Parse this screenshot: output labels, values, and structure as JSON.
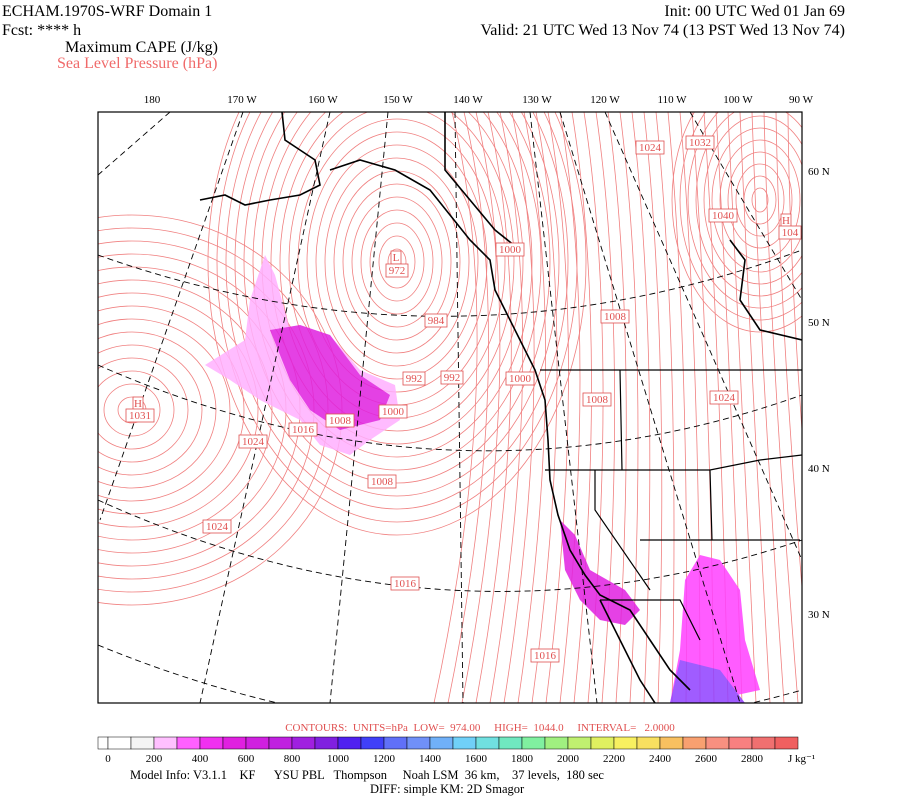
{
  "header": {
    "title": "ECHAM.1970S-WRF Domain 1",
    "forecast": "Fcst: **** h",
    "field": "Maximum CAPE (J/kg)",
    "contour_field": "Sea Level Pressure (hPa)",
    "init": "Init: 00 UTC Wed 01 Jan 69",
    "valid": "Valid: 21 UTC Wed 13 Nov 74 (13 PST Wed 13 Nov 74)"
  },
  "map": {
    "longitude_labels": [
      "180",
      "170 W",
      "160 W",
      "150 W",
      "140 W",
      "130 W",
      "120 W",
      "110 W",
      "100 W",
      "90 W"
    ],
    "latitude_labels": [
      "60 N",
      "50 N",
      "40 N",
      "30 N"
    ],
    "pressure_labels": [
      "1024",
      "1032",
      "1040",
      "H",
      "104",
      "L",
      "972",
      "1000",
      "984",
      "1008",
      "992",
      "992",
      "1000",
      "1008",
      "1024",
      "H",
      "1031",
      "1016",
      "1008",
      "1000",
      "1024",
      "1008",
      "1024",
      "1016",
      "1016"
    ]
  },
  "contour_info": "CONTOURS:  UNITS=hPa  LOW=  974.00     HIGH=  1044.0     INTERVAL=   2.0000",
  "colorbar": {
    "labels": [
      0,
      200,
      400,
      600,
      800,
      1000,
      1200,
      1400,
      1600,
      1800,
      2000,
      2200,
      2400,
      2600,
      2800
    ],
    "unit": "J kg⁻¹"
  },
  "footer": {
    "model_info": "Model Info: V3.1.1    KF      YSU PBL   Thompson     Noah LSM  36 km,    37 levels,  180 sec",
    "diff": "DIFF: simple KM: 2D Smagor"
  }
}
